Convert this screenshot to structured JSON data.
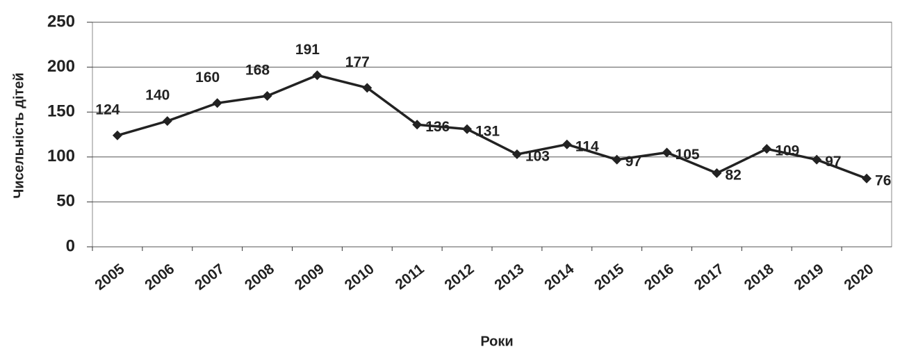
{
  "chart_data": {
    "type": "line",
    "y_label": "Чисельність дітей",
    "x_label": "Роки",
    "categories": [
      "2005",
      "2006",
      "2007",
      "2008",
      "2009",
      "2010",
      "2011",
      "2012",
      "2013",
      "2014",
      "2015",
      "2016",
      "2017",
      "2018",
      "2019",
      "2020"
    ],
    "values": [
      124,
      140,
      160,
      168,
      191,
      177,
      136,
      131,
      103,
      114,
      97,
      105,
      82,
      109,
      97,
      76
    ],
    "color": "#222222",
    "ylim": [
      0,
      250
    ],
    "yticks": [
      0,
      50,
      100,
      150,
      200,
      250
    ],
    "grid": true
  }
}
